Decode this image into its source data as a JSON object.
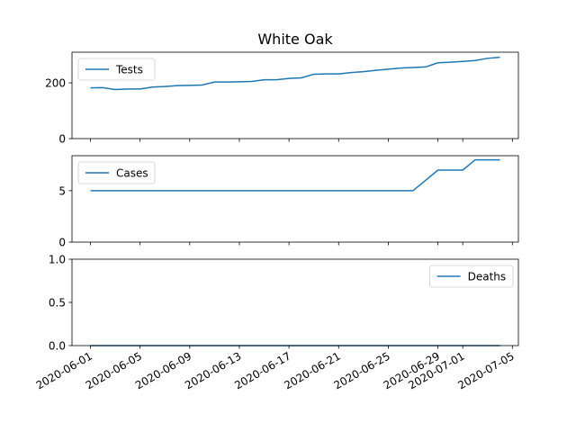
{
  "chart_data": {
    "title": "White Oak",
    "type": "line",
    "line_color": "#1f77b4",
    "x": [
      "2020-06-01",
      "2020-06-02",
      "2020-06-03",
      "2020-06-04",
      "2020-06-05",
      "2020-06-06",
      "2020-06-07",
      "2020-06-08",
      "2020-06-09",
      "2020-06-10",
      "2020-06-11",
      "2020-06-12",
      "2020-06-13",
      "2020-06-14",
      "2020-06-15",
      "2020-06-16",
      "2020-06-17",
      "2020-06-18",
      "2020-06-19",
      "2020-06-20",
      "2020-06-21",
      "2020-06-22",
      "2020-06-23",
      "2020-06-24",
      "2020-06-25",
      "2020-06-26",
      "2020-06-27",
      "2020-06-28",
      "2020-06-29",
      "2020-06-30",
      "2020-07-01",
      "2020-07-02",
      "2020-07-03",
      "2020-07-04"
    ],
    "x_ticks": [
      "2020-06-01",
      "2020-06-05",
      "2020-06-09",
      "2020-06-13",
      "2020-06-17",
      "2020-06-21",
      "2020-06-25",
      "2020-06-29",
      "2020-07-01",
      "2020-07-05"
    ],
    "panels": [
      {
        "series_name": "Tests",
        "legend": "top-left",
        "ylim": [
          0,
          310
        ],
        "yticks": [
          {
            "v": 0,
            "label": "0"
          },
          {
            "v": 200,
            "label": "200"
          }
        ],
        "values": [
          182,
          183,
          176,
          178,
          178,
          185,
          187,
          190,
          191,
          192,
          203,
          203,
          204,
          205,
          211,
          211,
          216,
          218,
          231,
          232,
          232,
          237,
          240,
          245,
          249,
          253,
          255,
          257,
          272,
          274,
          277,
          280,
          288,
          292
        ]
      },
      {
        "series_name": "Cases",
        "legend": "top-left",
        "ylim": [
          0,
          8.4
        ],
        "yticks": [
          {
            "v": 0,
            "label": "0"
          },
          {
            "v": 5,
            "label": "5"
          }
        ],
        "values": [
          5,
          5,
          5,
          5,
          5,
          5,
          5,
          5,
          5,
          5,
          5,
          5,
          5,
          5,
          5,
          5,
          5,
          5,
          5,
          5,
          5,
          5,
          5,
          5,
          5,
          5,
          5,
          6,
          7,
          7,
          7,
          8,
          8,
          8
        ]
      },
      {
        "series_name": "Deaths",
        "legend": "top-right",
        "ylim": [
          0,
          1
        ],
        "yticks": [
          {
            "v": 0,
            "label": "0.0"
          },
          {
            "v": 0.5,
            "label": "0.5"
          },
          {
            "v": 1,
            "label": "1.0"
          }
        ],
        "values": [
          0,
          0,
          0,
          0,
          0,
          0,
          0,
          0,
          0,
          0,
          0,
          0,
          0,
          0,
          0,
          0,
          0,
          0,
          0,
          0,
          0,
          0,
          0,
          0,
          0,
          0,
          0,
          0,
          0,
          0,
          0,
          0,
          0,
          0
        ]
      }
    ]
  }
}
